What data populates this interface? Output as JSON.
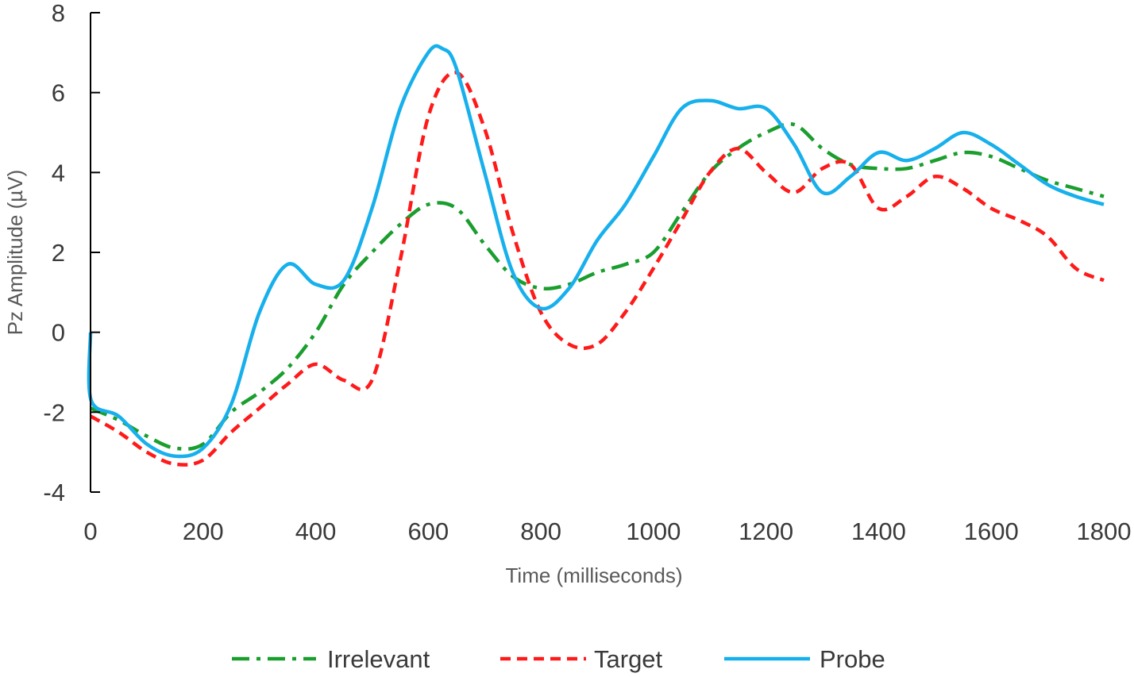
{
  "chart_data": {
    "type": "line",
    "title": "",
    "xlabel": "Time  (milliseconds)",
    "ylabel": "Pz Amplitude  (µV)",
    "xlim": [
      0,
      1800
    ],
    "ylim": [
      -4,
      8
    ],
    "x_ticks": [
      0,
      200,
      400,
      600,
      800,
      1000,
      1200,
      1400,
      1600,
      1800
    ],
    "y_ticks": [
      -4,
      -2,
      0,
      2,
      4,
      6,
      8
    ],
    "x_tick_labels": [
      "0",
      "200",
      "400",
      "600",
      "800",
      "1000",
      "1200",
      "1400",
      "1600",
      "1800"
    ],
    "y_tick_labels": [
      "-4",
      "-2",
      "0",
      "2",
      "4",
      "6",
      "8"
    ],
    "grid": false,
    "legend_position": "bottom",
    "colors": {
      "axis": "#000000",
      "irrelevant": "#1a9e2e",
      "target": "#ff1a1a",
      "probe": "#17b0ec"
    },
    "series": [
      {
        "name": "Irrelevant",
        "key": "irrelevant",
        "style": "dashdot",
        "x": [
          0,
          50,
          100,
          150,
          200,
          250,
          300,
          350,
          400,
          450,
          500,
          550,
          600,
          650,
          700,
          750,
          800,
          850,
          900,
          950,
          1000,
          1050,
          1100,
          1150,
          1200,
          1250,
          1300,
          1350,
          1400,
          1450,
          1500,
          1550,
          1600,
          1650,
          1700,
          1750,
          1800
        ],
        "y": [
          -1.9,
          -2.2,
          -2.6,
          -2.9,
          -2.8,
          -2.0,
          -1.5,
          -0.9,
          0.0,
          1.2,
          2.0,
          2.7,
          3.2,
          3.1,
          2.2,
          1.4,
          1.1,
          1.2,
          1.5,
          1.7,
          2.0,
          3.0,
          4.0,
          4.6,
          5.0,
          5.2,
          4.6,
          4.2,
          4.1,
          4.1,
          4.3,
          4.5,
          4.4,
          4.1,
          3.8,
          3.6,
          3.4
        ]
      },
      {
        "name": "Target",
        "key": "target",
        "style": "dashed",
        "x": [
          0,
          50,
          100,
          150,
          200,
          250,
          300,
          350,
          400,
          450,
          500,
          550,
          600,
          650,
          700,
          750,
          800,
          850,
          900,
          950,
          1000,
          1050,
          1100,
          1150,
          1200,
          1250,
          1300,
          1350,
          1400,
          1450,
          1500,
          1550,
          1600,
          1650,
          1700,
          1750,
          1800
        ],
        "y": [
          -2.1,
          -2.5,
          -3.0,
          -3.3,
          -3.2,
          -2.5,
          -1.9,
          -1.3,
          -0.8,
          -1.2,
          -1.2,
          1.8,
          5.4,
          6.5,
          5.1,
          2.5,
          0.5,
          -0.3,
          -0.3,
          0.5,
          1.6,
          2.8,
          4.0,
          4.6,
          4.0,
          3.5,
          4.1,
          4.2,
          3.1,
          3.4,
          3.9,
          3.6,
          3.1,
          2.8,
          2.4,
          1.6,
          1.3
        ]
      },
      {
        "name": "Probe",
        "key": "probe",
        "style": "solid",
        "x": [
          0,
          1,
          50,
          100,
          150,
          200,
          250,
          300,
          350,
          400,
          450,
          500,
          550,
          600,
          625,
          650,
          700,
          750,
          800,
          850,
          900,
          950,
          1000,
          1050,
          1100,
          1150,
          1200,
          1250,
          1300,
          1350,
          1400,
          1450,
          1500,
          1550,
          1600,
          1650,
          1700,
          1750,
          1800
        ],
        "y": [
          0.0,
          -1.7,
          -2.1,
          -2.8,
          -3.1,
          -2.9,
          -1.8,
          0.5,
          1.7,
          1.2,
          1.3,
          3.1,
          5.6,
          7.0,
          7.1,
          6.6,
          4.0,
          1.5,
          0.6,
          1.1,
          2.3,
          3.2,
          4.4,
          5.6,
          5.8,
          5.6,
          5.6,
          4.7,
          3.5,
          3.9,
          4.5,
          4.3,
          4.6,
          5.0,
          4.7,
          4.2,
          3.7,
          3.4,
          3.2
        ]
      }
    ]
  }
}
